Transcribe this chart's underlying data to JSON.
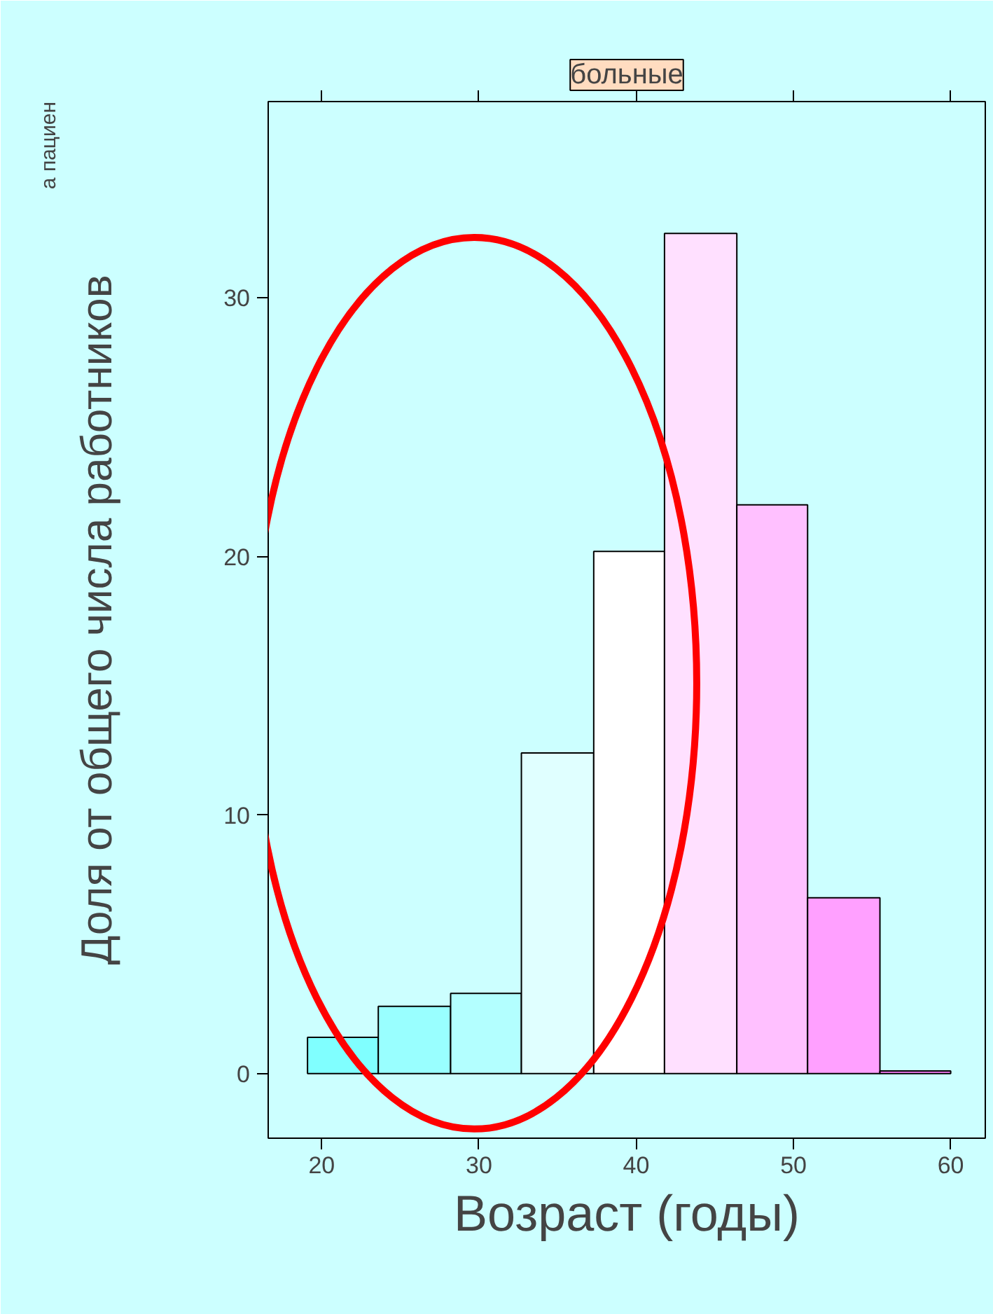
{
  "chart_data": {
    "type": "histogram",
    "title": "больные",
    "xlabel": "Возраст (годы)",
    "ylabel": "Доля от общего числа работников",
    "annotations": [
      "а пациен"
    ],
    "bins": [
      19.1,
      23.6,
      28.2,
      32.7,
      37.3,
      41.8,
      46.4,
      50.9,
      55.5,
      60
    ],
    "values": [
      1.4,
      2.6,
      3.1,
      12.4,
      20.2,
      32.5,
      22.0,
      6.8,
      0.1
    ],
    "colors": [
      "#80ffff",
      "#99ffff",
      "#b3ffff",
      "#e0ffff",
      "#ffffff",
      "#ffe0ff",
      "#ffc0ff",
      "#ffa0ff",
      "#ff80ff"
    ],
    "xlim": [
      16.6,
      62.2
    ],
    "xticks": [
      20,
      30,
      40,
      50,
      60
    ],
    "ylim": [
      -2.5,
      37.6
    ],
    "yticks": [
      0,
      10,
      20,
      30
    ],
    "grid": false
  }
}
